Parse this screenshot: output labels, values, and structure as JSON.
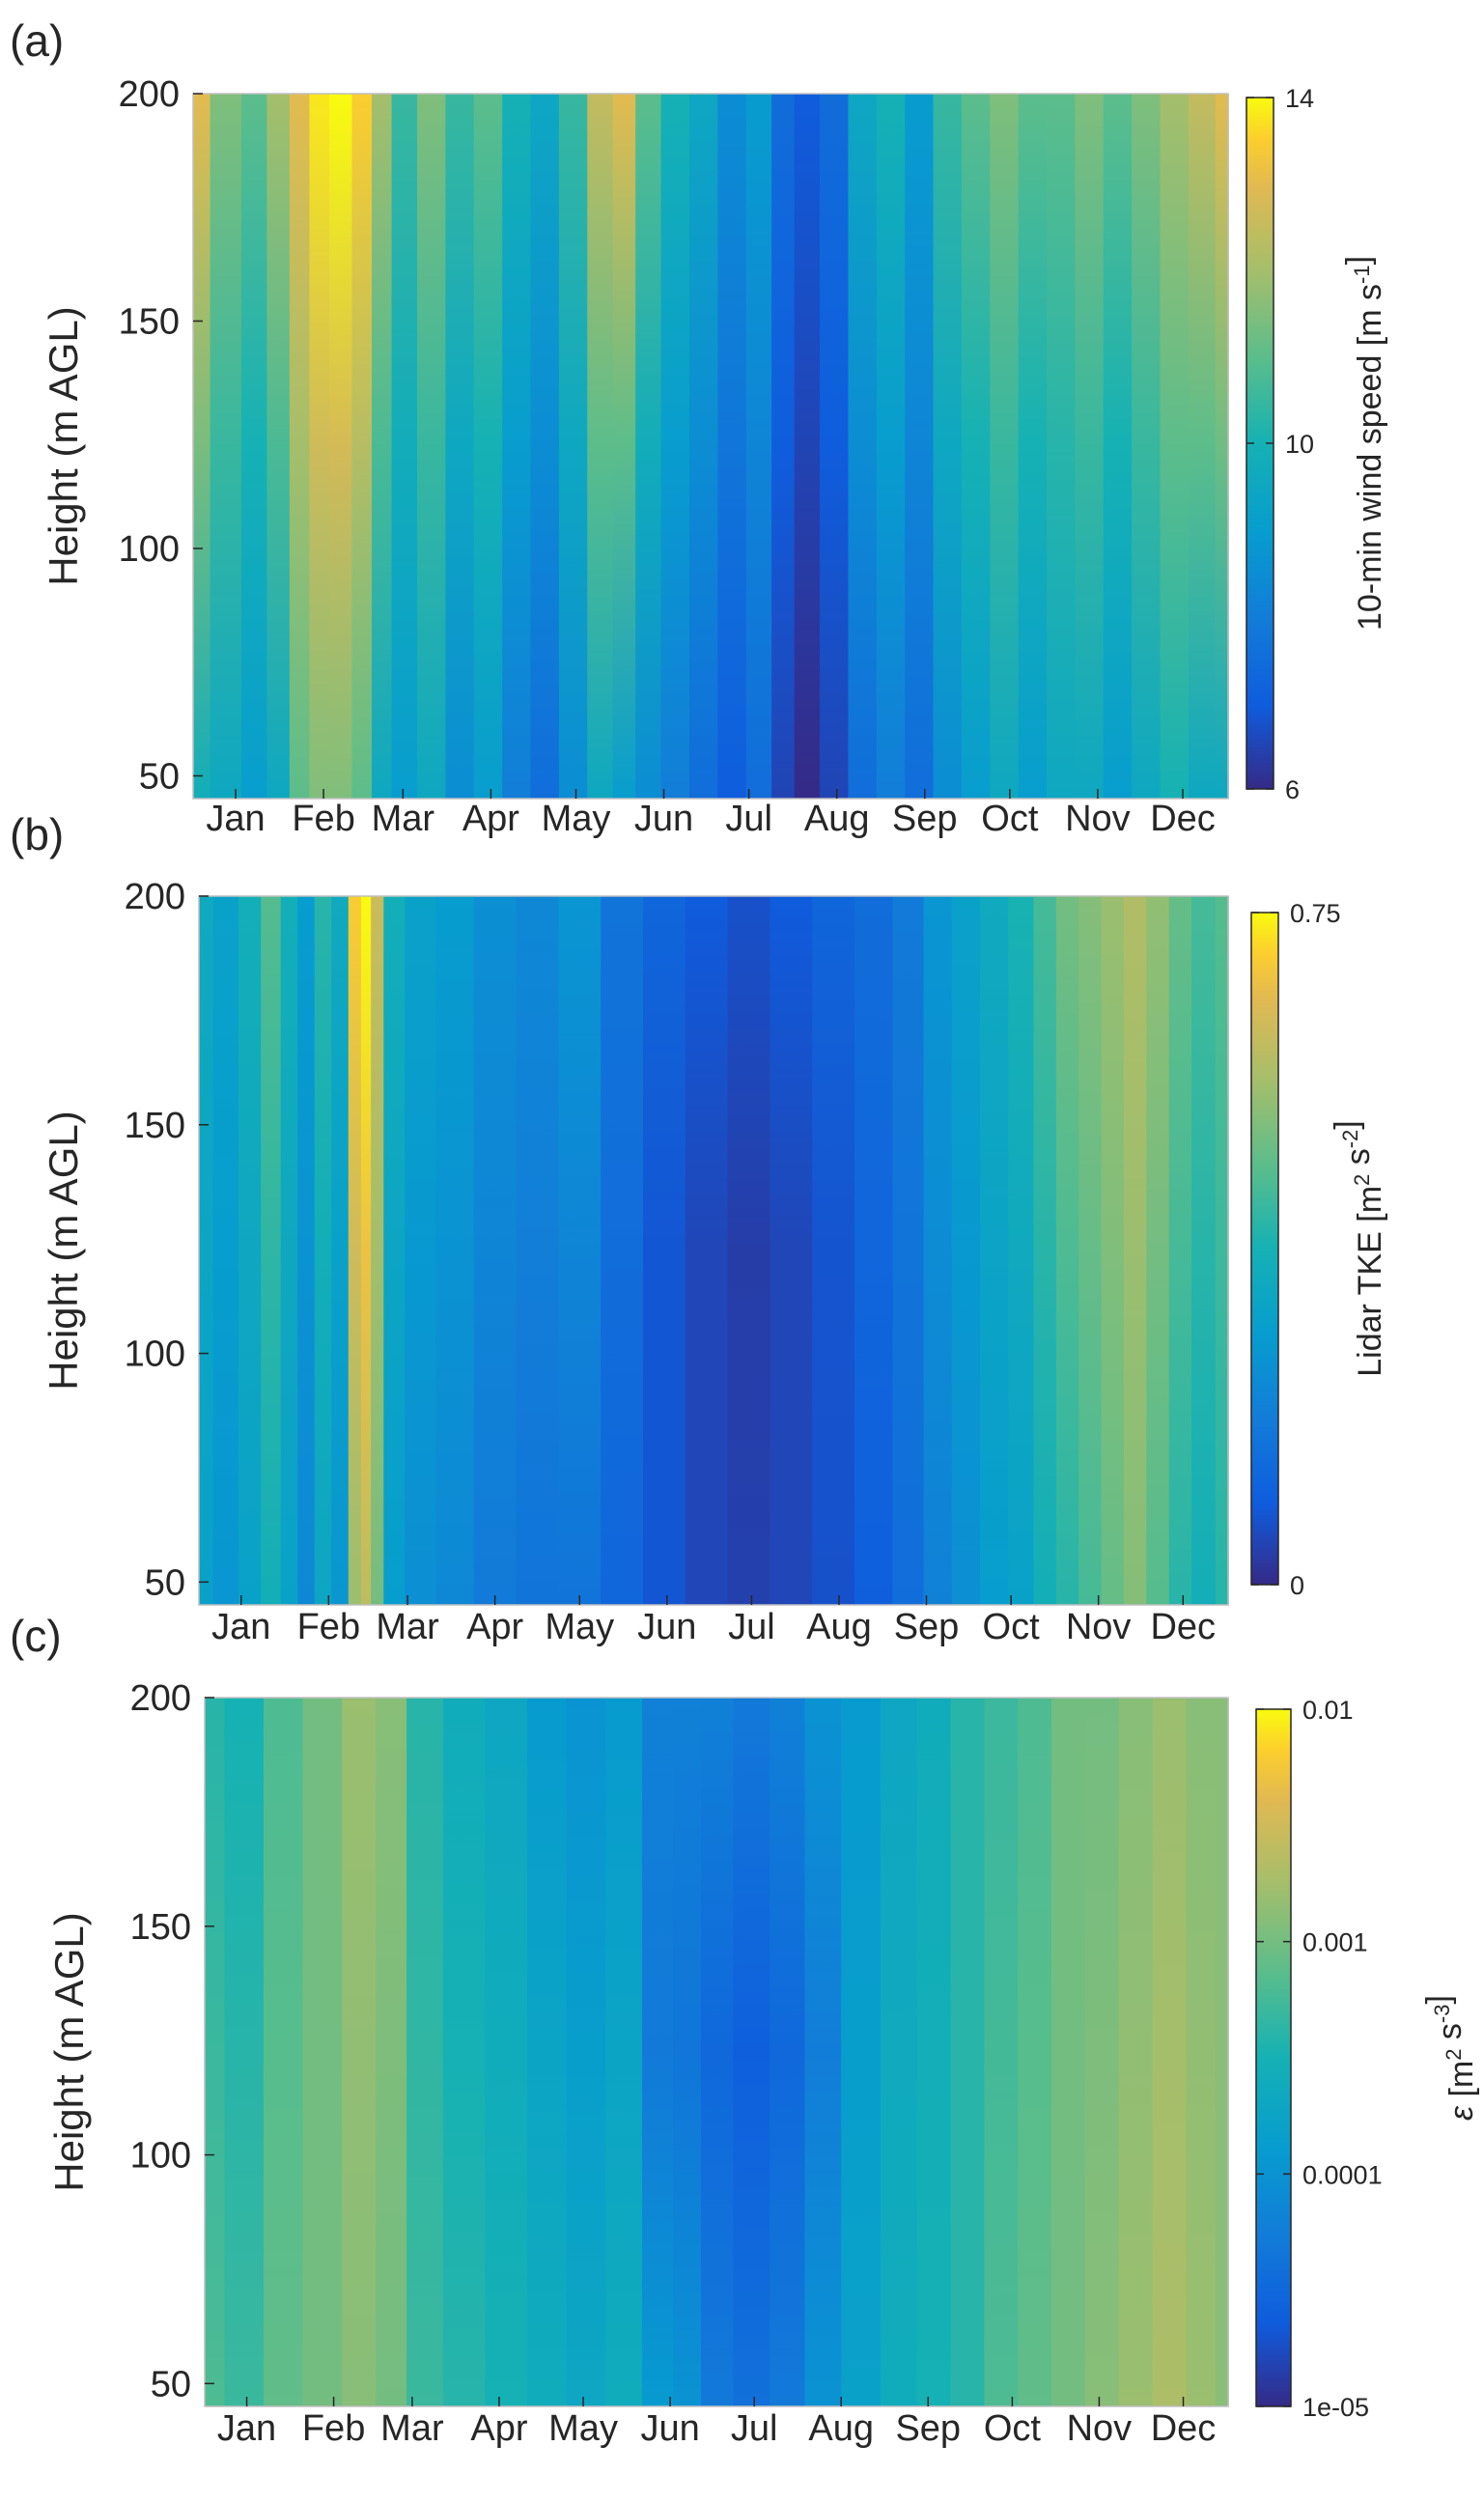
{
  "chart_data": [
    {
      "type": "heatmap",
      "panel_label": "(a)",
      "ylabel": "Height (m AGL)",
      "yticks": [
        "50",
        "100",
        "150",
        "200"
      ],
      "ylim": [
        45,
        200
      ],
      "months": [
        "Jan",
        "Feb",
        "Mar",
        "Apr",
        "May",
        "Jun",
        "Jul",
        "Aug",
        "Sep",
        "Oct",
        "Nov",
        "Dec"
      ],
      "colorbar": {
        "label": "10-min wind speed [m s",
        "label_sup": "-1",
        "label_end": "]",
        "ticks": [
          "6",
          "10",
          "14"
        ],
        "range": [
          6,
          14
        ],
        "scale": "linear"
      },
      "columns": [
        {
          "day": 0,
          "bottom": 9.8,
          "top": 13.0
        },
        {
          "day": 12,
          "bottom": 9.5,
          "top": 11.5
        },
        {
          "day": 22,
          "bottom": 9.0,
          "top": 11.0
        },
        {
          "day": 30,
          "bottom": 9.5,
          "top": 12.0
        },
        {
          "day": 38,
          "bottom": 11.0,
          "top": 13.0
        },
        {
          "day": 44,
          "bottom": 11.5,
          "top": 13.8
        },
        {
          "day": 52,
          "bottom": 11.5,
          "top": 14.0
        },
        {
          "day": 60,
          "bottom": 11.0,
          "top": 13.5
        },
        {
          "day": 66,
          "bottom": 9.5,
          "top": 12.0
        },
        {
          "day": 74,
          "bottom": 9.0,
          "top": 10.5
        },
        {
          "day": 84,
          "bottom": 9.5,
          "top": 11.5
        },
        {
          "day": 94,
          "bottom": 8.5,
          "top": 10.5
        },
        {
          "day": 104,
          "bottom": 9.0,
          "top": 11.0
        },
        {
          "day": 114,
          "bottom": 8.0,
          "top": 10.0
        },
        {
          "day": 124,
          "bottom": 7.5,
          "top": 9.5
        },
        {
          "day": 134,
          "bottom": 8.5,
          "top": 10.5
        },
        {
          "day": 144,
          "bottom": 9.5,
          "top": 12.5
        },
        {
          "day": 152,
          "bottom": 9.0,
          "top": 13.0
        },
        {
          "day": 160,
          "bottom": 8.5,
          "top": 11.0
        },
        {
          "day": 170,
          "bottom": 8.0,
          "top": 10.0
        },
        {
          "day": 180,
          "bottom": 7.5,
          "top": 9.5
        },
        {
          "day": 190,
          "bottom": 7.0,
          "top": 8.5
        },
        {
          "day": 200,
          "bottom": 7.5,
          "top": 9.0
        },
        {
          "day": 208,
          "bottom": 6.5,
          "top": 7.5
        },
        {
          "day": 216,
          "bottom": 6.0,
          "top": 7.0
        },
        {
          "day": 226,
          "bottom": 6.5,
          "top": 7.5
        },
        {
          "day": 236,
          "bottom": 7.5,
          "top": 9.5
        },
        {
          "day": 246,
          "bottom": 8.0,
          "top": 10.0
        },
        {
          "day": 256,
          "bottom": 7.5,
          "top": 9.0
        },
        {
          "day": 266,
          "bottom": 8.5,
          "top": 10.5
        },
        {
          "day": 276,
          "bottom": 9.0,
          "top": 11.0
        },
        {
          "day": 286,
          "bottom": 9.5,
          "top": 11.5
        },
        {
          "day": 296,
          "bottom": 9.0,
          "top": 11.0
        },
        {
          "day": 306,
          "bottom": 9.5,
          "top": 11.0
        },
        {
          "day": 316,
          "bottom": 9.5,
          "top": 11.5
        },
        {
          "day": 326,
          "bottom": 9.0,
          "top": 11.0
        },
        {
          "day": 336,
          "bottom": 9.5,
          "top": 11.5
        },
        {
          "day": 346,
          "bottom": 10.0,
          "top": 12.0
        },
        {
          "day": 356,
          "bottom": 9.5,
          "top": 12.5
        },
        {
          "day": 365,
          "bottom": 9.5,
          "top": 13.0
        }
      ]
    },
    {
      "type": "heatmap",
      "panel_label": "(b)",
      "ylabel": "Height (m AGL)",
      "yticks": [
        "50",
        "100",
        "150",
        "200"
      ],
      "ylim": [
        45,
        200
      ],
      "months": [
        "Jan",
        "Feb",
        "Mar",
        "Apr",
        "May",
        "Jun",
        "Jul",
        "Aug",
        "Sep",
        "Oct",
        "Nov",
        "Dec"
      ],
      "colorbar": {
        "label": "Lidar TKE [m",
        "label_sup": "2",
        "label_mid": " s",
        "label_sup2": "-2",
        "label_end": "]",
        "ticks": [
          "0",
          "0.75"
        ],
        "range": [
          0,
          0.75
        ],
        "scale": "linear"
      },
      "columns": [
        {
          "day": 0,
          "bottom": 0.3,
          "top": 0.34
        },
        {
          "day": 10,
          "bottom": 0.26,
          "top": 0.3
        },
        {
          "day": 18,
          "bottom": 0.3,
          "top": 0.36
        },
        {
          "day": 26,
          "bottom": 0.36,
          "top": 0.46
        },
        {
          "day": 32,
          "bottom": 0.3,
          "top": 0.36
        },
        {
          "day": 38,
          "bottom": 0.22,
          "top": 0.28
        },
        {
          "day": 44,
          "bottom": 0.32,
          "top": 0.4
        },
        {
          "day": 50,
          "bottom": 0.26,
          "top": 0.34
        },
        {
          "day": 56,
          "bottom": 0.55,
          "top": 0.7
        },
        {
          "day": 59,
          "bottom": 0.6,
          "top": 0.75
        },
        {
          "day": 63,
          "bottom": 0.5,
          "top": 0.62
        },
        {
          "day": 68,
          "bottom": 0.28,
          "top": 0.36
        },
        {
          "day": 78,
          "bottom": 0.24,
          "top": 0.3
        },
        {
          "day": 90,
          "bottom": 0.22,
          "top": 0.28
        },
        {
          "day": 105,
          "bottom": 0.18,
          "top": 0.24
        },
        {
          "day": 120,
          "bottom": 0.16,
          "top": 0.22
        },
        {
          "day": 135,
          "bottom": 0.16,
          "top": 0.26
        },
        {
          "day": 150,
          "bottom": 0.12,
          "top": 0.16
        },
        {
          "day": 165,
          "bottom": 0.08,
          "top": 0.12
        },
        {
          "day": 180,
          "bottom": 0.05,
          "top": 0.09
        },
        {
          "day": 195,
          "bottom": 0.04,
          "top": 0.07
        },
        {
          "day": 210,
          "bottom": 0.05,
          "top": 0.09
        },
        {
          "day": 225,
          "bottom": 0.07,
          "top": 0.12
        },
        {
          "day": 240,
          "bottom": 0.1,
          "top": 0.14
        },
        {
          "day": 252,
          "bottom": 0.14,
          "top": 0.18
        },
        {
          "day": 262,
          "bottom": 0.2,
          "top": 0.26
        },
        {
          "day": 272,
          "bottom": 0.24,
          "top": 0.3
        },
        {
          "day": 282,
          "bottom": 0.28,
          "top": 0.34
        },
        {
          "day": 292,
          "bottom": 0.3,
          "top": 0.38
        },
        {
          "day": 300,
          "bottom": 0.36,
          "top": 0.44
        },
        {
          "day": 308,
          "bottom": 0.4,
          "top": 0.5
        },
        {
          "day": 316,
          "bottom": 0.44,
          "top": 0.52
        },
        {
          "day": 324,
          "bottom": 0.48,
          "top": 0.55
        },
        {
          "day": 332,
          "bottom": 0.52,
          "top": 0.58
        },
        {
          "day": 340,
          "bottom": 0.46,
          "top": 0.54
        },
        {
          "day": 348,
          "bottom": 0.4,
          "top": 0.48
        },
        {
          "day": 356,
          "bottom": 0.36,
          "top": 0.44
        },
        {
          "day": 365,
          "bottom": 0.4,
          "top": 0.46
        }
      ]
    },
    {
      "type": "heatmap",
      "panel_label": "(c)",
      "ylabel": "Height (m AGL)",
      "yticks": [
        "50",
        "100",
        "150",
        "200"
      ],
      "ylim": [
        45,
        200
      ],
      "months": [
        "Jan",
        "Feb",
        "Mar",
        "Apr",
        "May",
        "Jun",
        "Jul",
        "Aug",
        "Sep",
        "Oct",
        "Nov",
        "Dec"
      ],
      "colorbar": {
        "label_symbol": "ε",
        "label": " [m",
        "label_sup": "2",
        "label_mid": " s",
        "label_sup2": "-3",
        "label_end": "]",
        "ticks": [
          "1e-05",
          "0.0001",
          "0.001",
          "0.01"
        ],
        "range_log10": [
          -5,
          -2
        ],
        "scale": "log"
      },
      "columns": [
        {
          "day": 0,
          "bottom": -3.2,
          "top": -3.4
        },
        {
          "day": 14,
          "bottom": -3.3,
          "top": -3.5
        },
        {
          "day": 28,
          "bottom": -3.1,
          "top": -3.2
        },
        {
          "day": 42,
          "bottom": -3.0,
          "top": -3.0
        },
        {
          "day": 56,
          "bottom": -2.9,
          "top": -2.8
        },
        {
          "day": 66,
          "bottom": -3.0,
          "top": -2.9
        },
        {
          "day": 78,
          "bottom": -3.3,
          "top": -3.4
        },
        {
          "day": 92,
          "bottom": -3.4,
          "top": -3.6
        },
        {
          "day": 108,
          "bottom": -3.5,
          "top": -3.7
        },
        {
          "day": 122,
          "bottom": -3.6,
          "top": -3.9
        },
        {
          "day": 136,
          "bottom": -3.7,
          "top": -4.0
        },
        {
          "day": 150,
          "bottom": -3.6,
          "top": -3.9
        },
        {
          "day": 162,
          "bottom": -3.9,
          "top": -4.2
        },
        {
          "day": 172,
          "bottom": -4.0,
          "top": -4.2
        },
        {
          "day": 182,
          "bottom": -4.3,
          "top": -4.2
        },
        {
          "day": 195,
          "bottom": -4.4,
          "top": -4.3
        },
        {
          "day": 208,
          "bottom": -4.3,
          "top": -4.2
        },
        {
          "day": 220,
          "bottom": -4.0,
          "top": -4.0
        },
        {
          "day": 234,
          "bottom": -3.8,
          "top": -3.9
        },
        {
          "day": 248,
          "bottom": -3.6,
          "top": -3.7
        },
        {
          "day": 260,
          "bottom": -3.5,
          "top": -3.6
        },
        {
          "day": 272,
          "bottom": -3.4,
          "top": -3.4
        },
        {
          "day": 284,
          "bottom": -3.2,
          "top": -3.3
        },
        {
          "day": 296,
          "bottom": -3.1,
          "top": -3.2
        },
        {
          "day": 308,
          "bottom": -3.0,
          "top": -3.0
        },
        {
          "day": 320,
          "bottom": -2.9,
          "top": -3.0
        },
        {
          "day": 332,
          "bottom": -2.8,
          "top": -2.9
        },
        {
          "day": 344,
          "bottom": -2.7,
          "top": -2.8
        },
        {
          "day": 356,
          "bottom": -2.8,
          "top": -2.9
        },
        {
          "day": 365,
          "bottom": -2.9,
          "top": -2.9
        }
      ]
    }
  ]
}
